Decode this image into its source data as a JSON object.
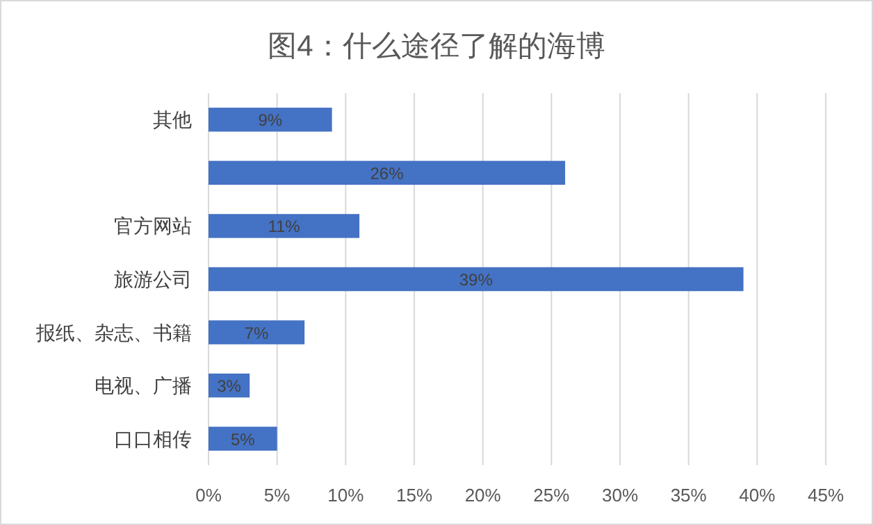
{
  "chart_data": {
    "type": "bar",
    "orientation": "horizontal",
    "title": "图4：什么途径了解的海博",
    "categories": [
      "其他",
      null,
      "官方网站",
      "旅游公司",
      "报纸、杂志、书籍",
      "电视、广播",
      "口口相传"
    ],
    "values": [
      9,
      26,
      11,
      39,
      7,
      3,
      5
    ],
    "value_labels": [
      "9%",
      "26%",
      "11%",
      "39%",
      "7%",
      "3%",
      "5%"
    ],
    "color": "#4472c4",
    "xlim": [
      0,
      45
    ],
    "xticks": [
      {
        "value": 0,
        "label": "0%"
      },
      {
        "value": 5,
        "label": "5%"
      },
      {
        "value": 10,
        "label": "10%"
      },
      {
        "value": 15,
        "label": "15%"
      },
      {
        "value": 20,
        "label": "20%"
      },
      {
        "value": 25,
        "label": "25%"
      },
      {
        "value": 30,
        "label": "30%"
      },
      {
        "value": 35,
        "label": "35%"
      },
      {
        "value": 40,
        "label": "40%"
      },
      {
        "value": 45,
        "label": "45%"
      }
    ],
    "grid": "x"
  }
}
